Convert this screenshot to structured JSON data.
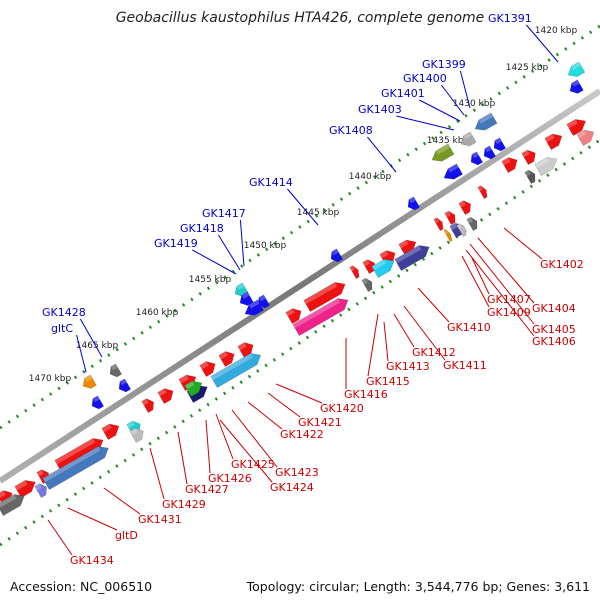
{
  "title": "Geobacillus kaustophilus HTA426, complete genome",
  "accession_text": "Accession: NC_006510",
  "topology_text": "Topology: circular; Length: 3,544,776 bp; Genes: 3,611",
  "colors": {
    "forward": "#ff1a1a",
    "reverse": "#1a1aff",
    "backbone": "#888888",
    "tick": "#228b22",
    "label_top": "#0000cc",
    "label_bottom": "#cc0000"
  },
  "ticks": [
    {
      "label": "1420 kbp",
      "pos_kbp": 1420
    },
    {
      "label": "1425 kbp",
      "pos_kbp": 1425
    },
    {
      "label": "1430 kbp",
      "pos_kbp": 1430
    },
    {
      "label": "1435 kbp",
      "pos_kbp": 1435
    },
    {
      "label": "1440 kbp",
      "pos_kbp": 1440
    },
    {
      "label": "1445 kbp",
      "pos_kbp": 1445
    },
    {
      "label": "1450 kbp",
      "pos_kbp": 1450
    },
    {
      "label": "1455 kbp",
      "pos_kbp": 1455
    },
    {
      "label": "1460 kbp",
      "pos_kbp": 1460
    },
    {
      "label": "1465 kbp",
      "pos_kbp": 1465
    },
    {
      "label": "1470 kbp",
      "pos_kbp": 1470
    }
  ],
  "top_labels": [
    "GK1391",
    "GK1399",
    "GK1400",
    "GK1401",
    "GK1403",
    "GK1408",
    "GK1414",
    "GK1417",
    "GK1418",
    "GK1419",
    "GK1428",
    "gltC"
  ],
  "bottom_labels": [
    "GK1402",
    "GK1404",
    "GK1405",
    "GK1406",
    "GK1407",
    "GK1409",
    "GK1410",
    "GK1411",
    "GK1412",
    "GK1413",
    "GK1415",
    "GK1416",
    "GK1420",
    "GK1421",
    "GK1422",
    "GK1423",
    "GK1424",
    "GK1425",
    "GK1426",
    "GK1427",
    "GK1429",
    "GK1431",
    "gltD",
    "GK1434"
  ]
}
